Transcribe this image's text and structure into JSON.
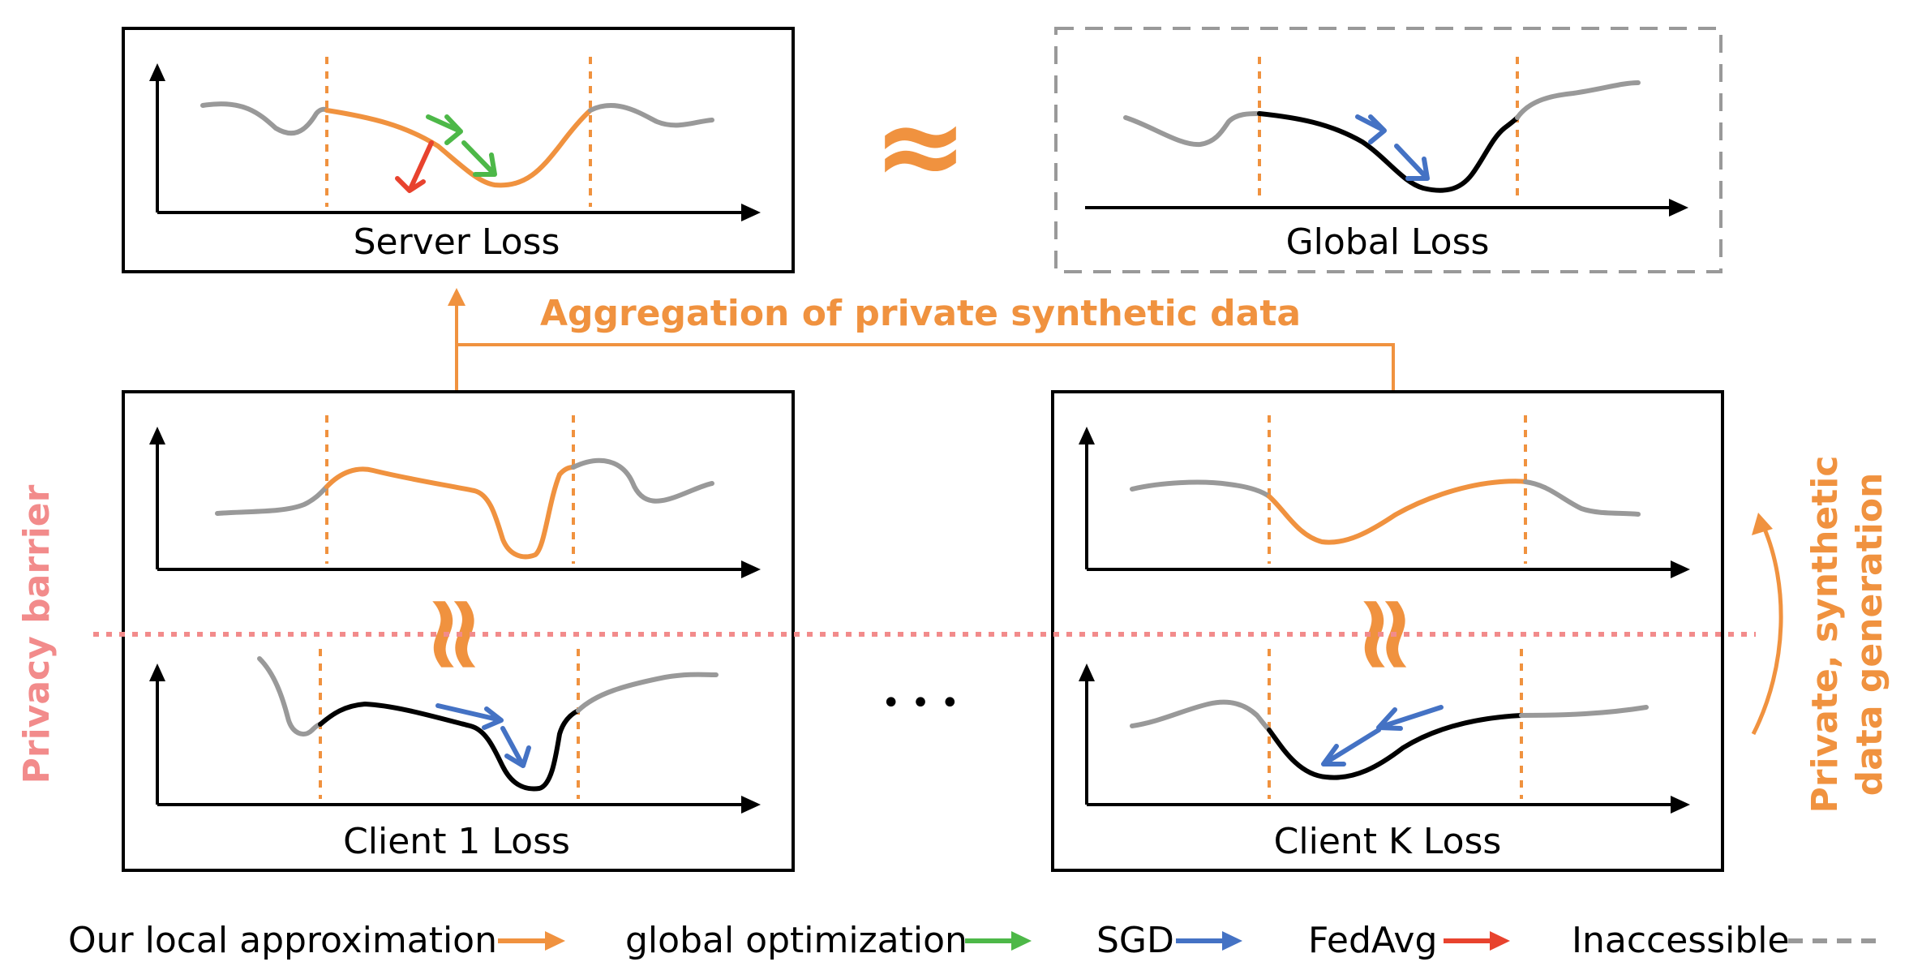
{
  "colors": {
    "approx": "#F0923F",
    "global": "#4DB848",
    "sgd": "#4472C4",
    "fedavg": "#E8432E",
    "inaccessible": "#999999",
    "curve_gray": "#999999",
    "curve_black": "#000000",
    "privacy": "#F28B8B"
  },
  "panels": {
    "server": {
      "label": "Server Loss"
    },
    "global": {
      "label": "Global Loss"
    },
    "client1": {
      "label": "Client 1 Loss"
    },
    "clientK": {
      "label": "Client K Loss"
    }
  },
  "approx_symbol": "≈",
  "aggregation_label": "Aggregation of private synthetic data",
  "privacy_label": "Privacy barrier",
  "generation_label_line1": "Private, synthetic",
  "generation_label_line2": "data generation",
  "ellipsis": "• • •",
  "legend": [
    {
      "label": "Our local approximation",
      "color_key": "approx",
      "style": "arrow"
    },
    {
      "label": "global optimization",
      "color_key": "global",
      "style": "arrow"
    },
    {
      "label": "SGD",
      "color_key": "sgd",
      "style": "arrow"
    },
    {
      "label": "FedAvg",
      "color_key": "fedavg",
      "style": "arrow"
    },
    {
      "label": "Inaccessible",
      "color_key": "inaccessible",
      "style": "dashed"
    }
  ]
}
